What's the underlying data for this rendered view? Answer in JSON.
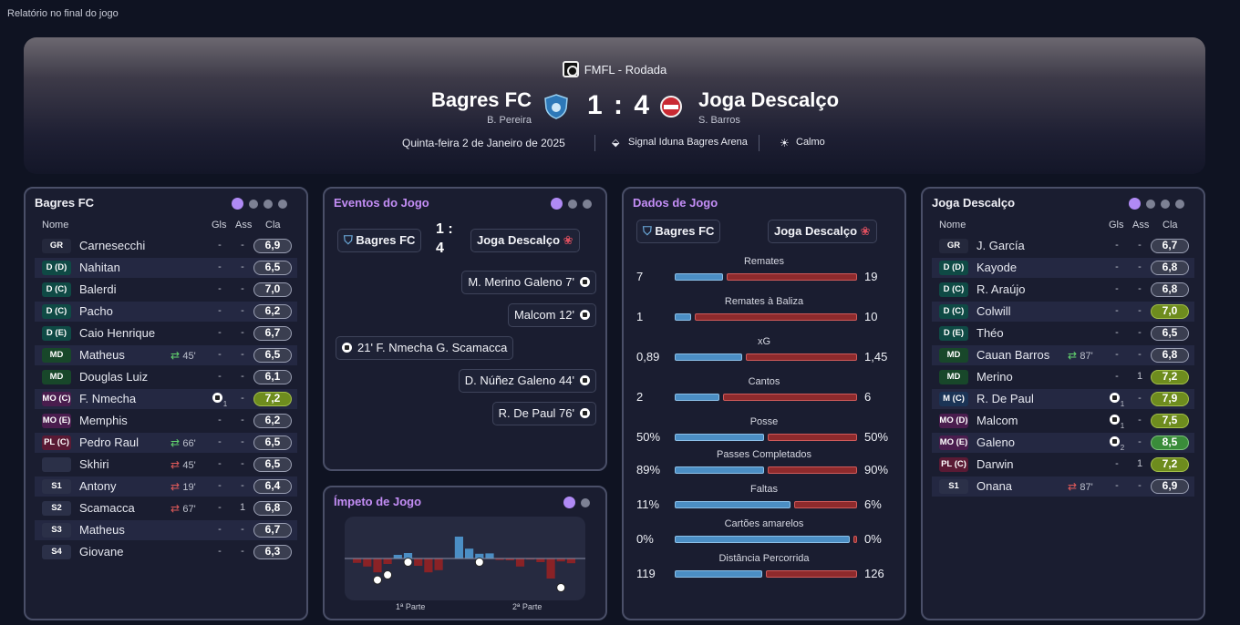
{
  "window_title": "Relatório no final do jogo",
  "header": {
    "competition": "FMFL - Rodada",
    "home": "Bagres FC",
    "home_manager": "B. Pereira",
    "away": "Joga Descalço",
    "away_manager": "S. Barros",
    "score": "1 : 4",
    "date": "Quinta-feira 2 de Janeiro de 2025",
    "stadium": "Signal Iduna Bagres Arena",
    "weather": "Calmo"
  },
  "columns": {
    "name": "Nome",
    "goals": "Gls",
    "assists": "Ass",
    "rating": "Cla"
  },
  "home_panel": {
    "title": "Bagres FC",
    "players": [
      {
        "pos": "GR",
        "name": "Carnesecchi",
        "sub": "",
        "goals": "-",
        "assists": "-",
        "rating": "6,9",
        "pos_color": "#24283c",
        "r": "n"
      },
      {
        "pos": "D (D)",
        "name": "Nahitan",
        "sub": "",
        "goals": "-",
        "assists": "-",
        "rating": "6,5",
        "pos_color": "#0f4a45",
        "r": "n"
      },
      {
        "pos": "D (C)",
        "name": "Balerdi",
        "sub": "",
        "goals": "-",
        "assists": "-",
        "rating": "7,0",
        "pos_color": "#0f4a45",
        "r": "n"
      },
      {
        "pos": "D (C)",
        "name": "Pacho",
        "sub": "",
        "goals": "-",
        "assists": "-",
        "rating": "6,2",
        "pos_color": "#0f4a45",
        "r": "n"
      },
      {
        "pos": "D (E)",
        "name": "Caio Henrique",
        "sub": "",
        "goals": "-",
        "assists": "-",
        "rating": "6,7",
        "pos_color": "#0f4a45",
        "r": "n"
      },
      {
        "pos": "MD",
        "name": "Matheus",
        "sub": "45'",
        "subdir": "out",
        "goals": "-",
        "assists": "-",
        "rating": "6,5",
        "pos_color": "#18472a",
        "r": "n"
      },
      {
        "pos": "MD",
        "name": "Douglas Luiz",
        "sub": "",
        "goals": "-",
        "assists": "-",
        "rating": "6,1",
        "pos_color": "#18472a",
        "r": "n"
      },
      {
        "pos": "MO (C)",
        "name": "F. Nmecha",
        "sub": "",
        "goals": "1",
        "assists": "-",
        "rating": "7,2",
        "pos_color": "#4a1d4e",
        "r": "g"
      },
      {
        "pos": "MO (E)",
        "name": "Memphis",
        "sub": "",
        "goals": "-",
        "assists": "-",
        "rating": "6,2",
        "pos_color": "#4a1d4e",
        "r": "n"
      },
      {
        "pos": "PL (C)",
        "name": "Pedro Raul",
        "sub": "66'",
        "subdir": "out",
        "goals": "-",
        "assists": "-",
        "rating": "6,5",
        "pos_color": "#5a1a34",
        "r": "n"
      },
      {
        "pos": "",
        "name": "Skhiri",
        "sub": "45'",
        "subdir": "in",
        "goals": "-",
        "assists": "-",
        "rating": "6,5",
        "pos_color": "#2b3048",
        "r": "n"
      },
      {
        "pos": "S1",
        "name": "Antony",
        "sub": "19'",
        "subdir": "in",
        "goals": "-",
        "assists": "-",
        "rating": "6,4",
        "pos_color": "#2b3048",
        "r": "n"
      },
      {
        "pos": "S2",
        "name": "Scamacca",
        "sub": "67'",
        "subdir": "in",
        "goals": "-",
        "assists": "1",
        "rating": "6,8",
        "pos_color": "#2b3048",
        "r": "n"
      },
      {
        "pos": "S3",
        "name": "Matheus",
        "sub": "",
        "goals": "-",
        "assists": "-",
        "rating": "6,7",
        "pos_color": "#2b3048",
        "r": "n"
      },
      {
        "pos": "S4",
        "name": "Giovane",
        "sub": "",
        "goals": "-",
        "assists": "-",
        "rating": "6,3",
        "pos_color": "#2b3048",
        "r": "n"
      }
    ]
  },
  "away_panel": {
    "title": "Joga Descalço",
    "players": [
      {
        "pos": "GR",
        "name": "J. García",
        "sub": "",
        "goals": "-",
        "assists": "-",
        "rating": "6,7",
        "pos_color": "#24283c",
        "r": "n"
      },
      {
        "pos": "D (D)",
        "name": "Kayode",
        "sub": "",
        "goals": "-",
        "assists": "-",
        "rating": "6,8",
        "pos_color": "#0f4a45",
        "r": "n"
      },
      {
        "pos": "D (C)",
        "name": "R. Araújo",
        "sub": "",
        "goals": "-",
        "assists": "-",
        "rating": "6,8",
        "pos_color": "#0f4a45",
        "r": "n"
      },
      {
        "pos": "D (C)",
        "name": "Colwill",
        "sub": "",
        "goals": "-",
        "assists": "-",
        "rating": "7,0",
        "pos_color": "#0f4a45",
        "r": "g"
      },
      {
        "pos": "D (E)",
        "name": "Théo",
        "sub": "",
        "goals": "-",
        "assists": "-",
        "rating": "6,5",
        "pos_color": "#0f4a45",
        "r": "n"
      },
      {
        "pos": "MD",
        "name": "Cauan Barros",
        "sub": "87'",
        "subdir": "out",
        "goals": "-",
        "assists": "-",
        "rating": "6,8",
        "pos_color": "#18472a",
        "r": "n"
      },
      {
        "pos": "MD",
        "name": "Merino",
        "sub": "",
        "goals": "-",
        "assists": "1",
        "rating": "7,2",
        "pos_color": "#18472a",
        "r": "g"
      },
      {
        "pos": "M (C)",
        "name": "R. De Paul",
        "sub": "",
        "goals": "1",
        "assists": "-",
        "rating": "7,9",
        "pos_color": "#1b3456",
        "r": "g"
      },
      {
        "pos": "MO (D)",
        "name": "Malcom",
        "sub": "",
        "goals": "1",
        "assists": "-",
        "rating": "7,5",
        "pos_color": "#4a1d4e",
        "r": "g"
      },
      {
        "pos": "MO (E)",
        "name": "Galeno",
        "sub": "",
        "goals": "2",
        "assists": "-",
        "rating": "8,5",
        "pos_color": "#4a1d4e",
        "r": "e"
      },
      {
        "pos": "PL (C)",
        "name": "Darwin",
        "sub": "",
        "goals": "-",
        "assists": "1",
        "rating": "7,2",
        "pos_color": "#5a1a34",
        "r": "g"
      },
      {
        "pos": "S1",
        "name": "Onana",
        "sub": "87'",
        "subdir": "in",
        "goals": "-",
        "assists": "-",
        "rating": "6,9",
        "pos_color": "#2b3048",
        "r": "n"
      }
    ]
  },
  "events_panel": {
    "title": "Eventos do Jogo",
    "home_chip": "Bagres FC",
    "score": "1 : 4",
    "away_chip": "Joga Descalço",
    "events": [
      {
        "side": "away",
        "text": "M. Merino  Galeno  7'"
      },
      {
        "side": "away",
        "text": "Malcom  12'"
      },
      {
        "side": "home",
        "text": "21'  F. Nmecha  G. Scamacca"
      },
      {
        "side": "away",
        "text": "D. Núñez  Galeno  44'"
      },
      {
        "side": "away",
        "text": "R. De Paul  76'"
      }
    ]
  },
  "momentum_panel": {
    "title": "Ímpeto de Jogo",
    "label_first": "1ª Parte",
    "label_second": "2ª Parte",
    "values": [
      -0.12,
      -0.22,
      -0.38,
      -0.15,
      0.1,
      0.15,
      -0.2,
      -0.38,
      -0.32,
      0.0,
      0.6,
      0.27,
      0.13,
      0.14,
      -0.04,
      -0.05,
      -0.22,
      -0.03,
      -0.1,
      -0.55,
      -0.08,
      -0.13
    ]
  },
  "stats_panel": {
    "title": "Dados de Jogo",
    "home": "Bagres FC",
    "away": "Joga Descalço",
    "stats": [
      {
        "label": "Remates",
        "home": "7",
        "away": "19",
        "hf": 0.27
      },
      {
        "label": "Remates à Baliza",
        "home": "1",
        "away": "10",
        "hf": 0.09
      },
      {
        "label": "xG",
        "home": "0,89",
        "away": "1,45",
        "hf": 0.38
      },
      {
        "label": "Cantos",
        "home": "2",
        "away": "6",
        "hf": 0.25
      },
      {
        "label": "Posse",
        "home": "50%",
        "away": "50%",
        "hf": 0.5
      },
      {
        "label": "Passes Completados",
        "home": "89%",
        "away": "90%",
        "hf": 0.5
      },
      {
        "label": "Faltas",
        "home": "11%",
        "away": "6%",
        "hf": 0.65
      },
      {
        "label": "Cartões amarelos",
        "home": "0%",
        "away": "0%",
        "hf": 0.98
      },
      {
        "label": "Distância Percorrida",
        "home": "119",
        "away": "126",
        "hf": 0.49
      }
    ]
  },
  "colors": {
    "home_bar": "#4b8ec4",
    "away_bar": "#8e2a2c",
    "accent": "#b08af5"
  }
}
